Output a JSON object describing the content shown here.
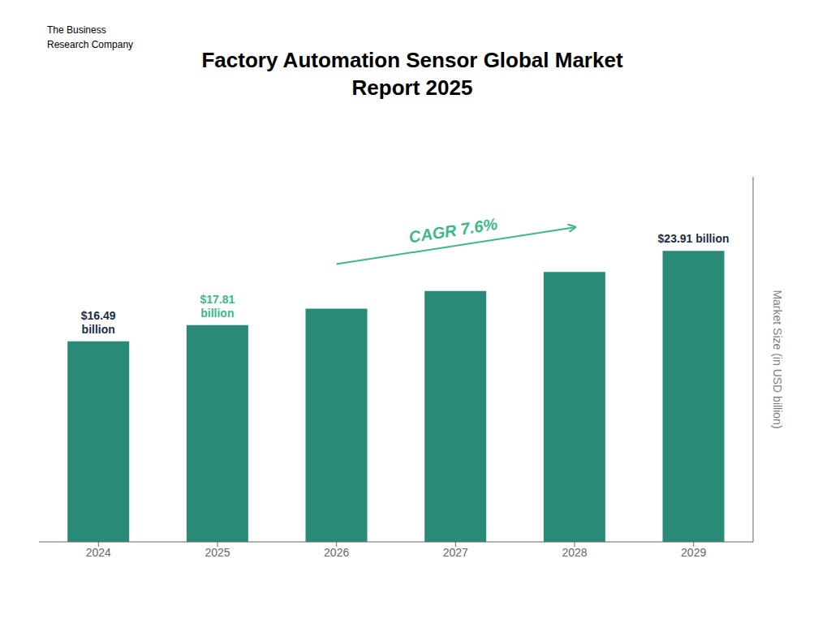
{
  "chart_data": {
    "type": "bar",
    "title": "Factory Automation Sensor Global Market\nReport 2025",
    "categories": [
      "2024",
      "2025",
      "2026",
      "2027",
      "2028",
      "2029"
    ],
    "values": [
      16.49,
      17.81,
      19.16,
      20.62,
      22.19,
      23.91
    ],
    "color": "#2a8a78",
    "ylim": [
      0,
      30
    ],
    "ylabel": "Market Size (in USD billion)",
    "tick_labels": "x",
    "grid": false,
    "annotations": [
      {
        "text": "$16.49\nbillion",
        "category": "2024",
        "color": "#1a2e44"
      },
      {
        "text": "$17.81\nbillion",
        "category": "2025",
        "color": "#3db88a"
      },
      {
        "text": "$23.91 billion",
        "category": "2029",
        "color": "#1a2e44"
      },
      {
        "text": "CAGR 7.6%",
        "from": "2026",
        "to": "2028",
        "color": "#3db88a"
      },
      {
        "text": "The Business\nResearch Company"
      }
    ]
  }
}
